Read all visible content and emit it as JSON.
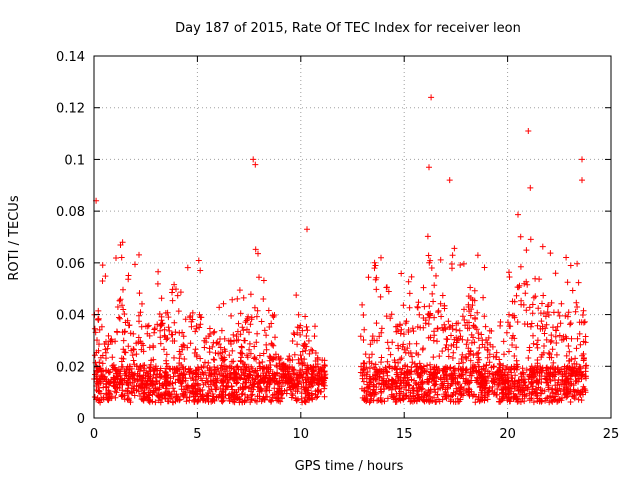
{
  "chart_data": {
    "type": "scatter",
    "title": "Day 187 of 2015, Rate Of TEC Index for receiver leon",
    "xlabel": "GPS time / hours",
    "ylabel": "ROTI / TECUs",
    "xlim": [
      0,
      25
    ],
    "ylim": [
      0,
      0.14
    ],
    "xticks": [
      0,
      5,
      10,
      15,
      20,
      25
    ],
    "xtick_labels": [
      "0",
      "5",
      "10",
      "15",
      "20",
      "25"
    ],
    "yticks": [
      0,
      0.02,
      0.04,
      0.06,
      0.08,
      0.1,
      0.12,
      0.14
    ],
    "ytick_labels": [
      "0",
      "0.02",
      "0.04",
      "0.06",
      "0.08",
      "0.1",
      "0.12",
      "0.14"
    ],
    "grid": true,
    "marker": "+",
    "color": "#ff0000",
    "data_gap_hours": [
      11.2,
      12.9
    ],
    "notable_points": [
      {
        "x": 0.1,
        "y": 0.084
      },
      {
        "x": 7.7,
        "y": 0.1
      },
      {
        "x": 7.8,
        "y": 0.098
      },
      {
        "x": 10.3,
        "y": 0.073
      },
      {
        "x": 16.3,
        "y": 0.124
      },
      {
        "x": 16.2,
        "y": 0.097
      },
      {
        "x": 17.2,
        "y": 0.092
      },
      {
        "x": 21.0,
        "y": 0.111
      },
      {
        "x": 21.1,
        "y": 0.089
      },
      {
        "x": 23.6,
        "y": 0.1
      },
      {
        "x": 23.6,
        "y": 0.092
      }
    ],
    "series": [
      {
        "baseline": 0.013,
        "envelope": [
          {
            "x": 0.0,
            "y": 0.05
          },
          {
            "x": 0.3,
            "y": 0.07
          },
          {
            "x": 0.8,
            "y": 0.04
          },
          {
            "x": 1.2,
            "y": 0.075
          },
          {
            "x": 1.8,
            "y": 0.06
          },
          {
            "x": 2.2,
            "y": 0.07
          },
          {
            "x": 2.8,
            "y": 0.05
          },
          {
            "x": 3.5,
            "y": 0.068
          },
          {
            "x": 4.2,
            "y": 0.05
          },
          {
            "x": 4.8,
            "y": 0.068
          },
          {
            "x": 5.5,
            "y": 0.055
          },
          {
            "x": 6.2,
            "y": 0.045
          },
          {
            "x": 7.0,
            "y": 0.05
          },
          {
            "x": 7.8,
            "y": 0.07
          },
          {
            "x": 8.5,
            "y": 0.045
          },
          {
            "x": 9.2,
            "y": 0.03
          },
          {
            "x": 9.6,
            "y": 0.05
          },
          {
            "x": 10.0,
            "y": 0.06
          },
          {
            "x": 10.4,
            "y": 0.045
          },
          {
            "x": 11.0,
            "y": 0.03
          },
          {
            "x": 13.0,
            "y": 0.055
          },
          {
            "x": 13.5,
            "y": 0.06
          },
          {
            "x": 14.2,
            "y": 0.065
          },
          {
            "x": 15.0,
            "y": 0.07
          },
          {
            "x": 15.6,
            "y": 0.045
          },
          {
            "x": 16.2,
            "y": 0.08
          },
          {
            "x": 16.8,
            "y": 0.07
          },
          {
            "x": 17.3,
            "y": 0.065
          },
          {
            "x": 17.8,
            "y": 0.07
          },
          {
            "x": 18.5,
            "y": 0.075
          },
          {
            "x": 19.0,
            "y": 0.07
          },
          {
            "x": 19.5,
            "y": 0.035
          },
          {
            "x": 20.2,
            "y": 0.07
          },
          {
            "x": 20.6,
            "y": 0.088
          },
          {
            "x": 21.2,
            "y": 0.07
          },
          {
            "x": 21.8,
            "y": 0.07
          },
          {
            "x": 22.5,
            "y": 0.06
          },
          {
            "x": 23.0,
            "y": 0.065
          },
          {
            "x": 23.6,
            "y": 0.06
          }
        ]
      }
    ]
  }
}
